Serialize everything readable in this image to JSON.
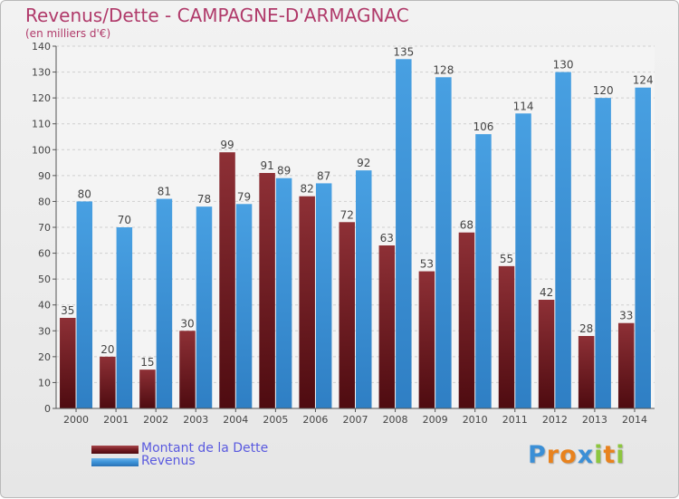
{
  "header": {
    "title": "Revenus/Dette - CAMPAGNE-D'ARMAGNAC",
    "subtitle": "(en milliers d'€)"
  },
  "chart_data": {
    "type": "bar",
    "categories": [
      "2000",
      "2001",
      "2002",
      "2003",
      "2004",
      "2005",
      "2006",
      "2007",
      "2008",
      "2009",
      "2010",
      "2011",
      "2012",
      "2013",
      "2014"
    ],
    "series": [
      {
        "name": "Montant de la Dette",
        "color": "#7a1f25",
        "values": [
          35,
          20,
          15,
          30,
          99,
          91,
          82,
          72,
          63,
          53,
          68,
          55,
          42,
          28,
          33
        ]
      },
      {
        "name": "Revenus",
        "color": "#3d93d9",
        "values": [
          80,
          70,
          81,
          78,
          79,
          89,
          87,
          92,
          135,
          128,
          106,
          114,
          130,
          120,
          124
        ]
      }
    ],
    "y_ticks": [
      0,
      10,
      20,
      30,
      40,
      50,
      60,
      70,
      80,
      90,
      100,
      110,
      120,
      130,
      140
    ],
    "ylim": [
      0,
      140
    ],
    "grid": true,
    "legend_position": "bottom-left"
  },
  "legend": {
    "items": [
      {
        "label": "Montant de la Dette",
        "color": "#7a1f25"
      },
      {
        "label": "Revenus",
        "color": "#3d93d9"
      }
    ]
  },
  "logo": {
    "letters": [
      "P",
      "r",
      "o",
      "x",
      "i",
      "t",
      "i"
    ],
    "colors": [
      "#3b8fd6",
      "#e8821e",
      "#e8821e",
      "#3b8fd6",
      "#8dc63f",
      "#e8821e",
      "#8dc63f"
    ]
  }
}
